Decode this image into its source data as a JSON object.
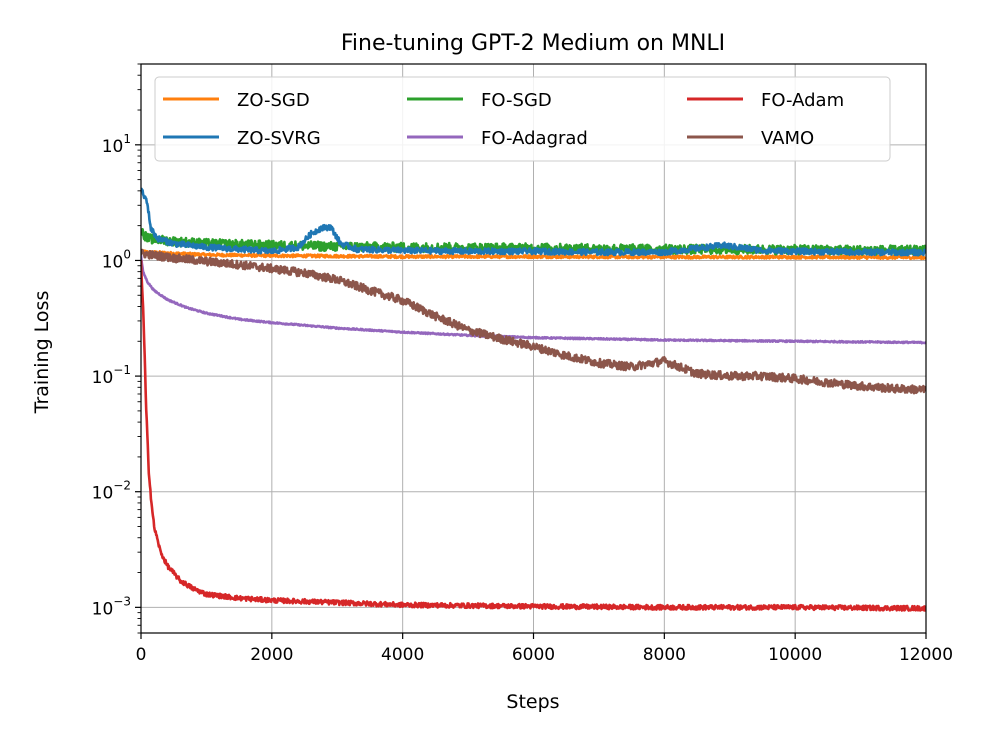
{
  "chart_data": {
    "type": "line",
    "title": "Fine-tuning GPT-2 Medium on MNLI",
    "xlabel": "Steps",
    "ylabel": "Training Loss",
    "xlim": [
      0,
      12000
    ],
    "ylim": [
      0.0006,
      50
    ],
    "yscale": "log",
    "grid": true,
    "legend_position": "top",
    "x_ticks": [
      0,
      2000,
      4000,
      6000,
      8000,
      10000,
      12000
    ],
    "x_tick_labels": [
      "0",
      "2000",
      "4000",
      "6000",
      "8000",
      "10000",
      "12000"
    ],
    "y_ticks": [
      0.001,
      0.01,
      0.1,
      1,
      10
    ],
    "y_tick_labels": [
      {
        "base": "10",
        "exp": "−3"
      },
      {
        "base": "10",
        "exp": "−2"
      },
      {
        "base": "10",
        "exp": "−1"
      },
      {
        "base": "10",
        "exp": "0"
      },
      {
        "base": "10",
        "exp": "1"
      }
    ],
    "series": [
      {
        "name": "ZO-SGD",
        "color": "#ff7f0e",
        "noise": 0.012,
        "x": [
          0,
          100,
          500,
          1000,
          2000,
          3000,
          4000,
          6000,
          8000,
          10000,
          12000
        ],
        "y": [
          1.2,
          1.18,
          1.15,
          1.12,
          1.1,
          1.09,
          1.08,
          1.08,
          1.07,
          1.07,
          1.06
        ]
      },
      {
        "name": "ZO-SVRG",
        "color": "#1f77b4",
        "noise": 0.025,
        "x": [
          0,
          40,
          90,
          150,
          250,
          500,
          1000,
          1500,
          2000,
          2400,
          2600,
          2750,
          2900,
          3050,
          3300,
          4000,
          5000,
          6000,
          7000,
          8000,
          8900,
          9500,
          10000,
          11000,
          12000
        ],
        "y": [
          4.2,
          3.6,
          3.3,
          1.9,
          1.55,
          1.4,
          1.3,
          1.25,
          1.2,
          1.3,
          1.7,
          1.9,
          1.95,
          1.4,
          1.25,
          1.22,
          1.2,
          1.2,
          1.18,
          1.18,
          1.35,
          1.22,
          1.2,
          1.18,
          1.17
        ]
      },
      {
        "name": "FO-SGD",
        "color": "#2ca02c",
        "noise": 0.04,
        "x": [
          0,
          100,
          300,
          600,
          1000,
          2000,
          3000,
          4000,
          6000,
          8000,
          10000,
          12000
        ],
        "y": [
          1.8,
          1.55,
          1.5,
          1.45,
          1.4,
          1.35,
          1.32,
          1.3,
          1.28,
          1.25,
          1.24,
          1.22
        ]
      },
      {
        "name": "FO-Adagrad",
        "color": "#9467bd",
        "noise": 0.006,
        "x": [
          0,
          30,
          100,
          200,
          400,
          700,
          1000,
          1500,
          2000,
          3000,
          4000,
          5000,
          6000,
          8000,
          10000,
          12000
        ],
        "y": [
          1.1,
          0.8,
          0.65,
          0.55,
          0.46,
          0.39,
          0.35,
          0.31,
          0.29,
          0.26,
          0.24,
          0.225,
          0.215,
          0.205,
          0.2,
          0.195
        ]
      },
      {
        "name": "FO-Adam",
        "color": "#d62728",
        "noise": 0.02,
        "x": [
          0,
          40,
          80,
          120,
          160,
          200,
          300,
          400,
          600,
          800,
          1000,
          1500,
          2000,
          3000,
          4000,
          6000,
          8000,
          10000,
          12000
        ],
        "y": [
          1.0,
          0.3,
          0.05,
          0.015,
          0.008,
          0.005,
          0.003,
          0.0023,
          0.0017,
          0.00145,
          0.0013,
          0.0012,
          0.00115,
          0.0011,
          0.00105,
          0.00102,
          0.001,
          0.001,
          0.00098
        ]
      },
      {
        "name": "VAMO",
        "color": "#8c564b",
        "noise": 0.035,
        "x": [
          0,
          500,
          1000,
          1500,
          2000,
          2500,
          3000,
          3500,
          4000,
          4500,
          5000,
          5500,
          6000,
          6500,
          7000,
          7500,
          8000,
          8500,
          9000,
          9500,
          10000,
          10500,
          11000,
          11500,
          12000
        ],
        "y": [
          1.15,
          1.05,
          0.98,
          0.92,
          0.85,
          0.78,
          0.68,
          0.55,
          0.45,
          0.33,
          0.25,
          0.21,
          0.18,
          0.15,
          0.13,
          0.12,
          0.135,
          0.105,
          0.1,
          0.1,
          0.095,
          0.088,
          0.082,
          0.078,
          0.076
        ]
      }
    ]
  }
}
